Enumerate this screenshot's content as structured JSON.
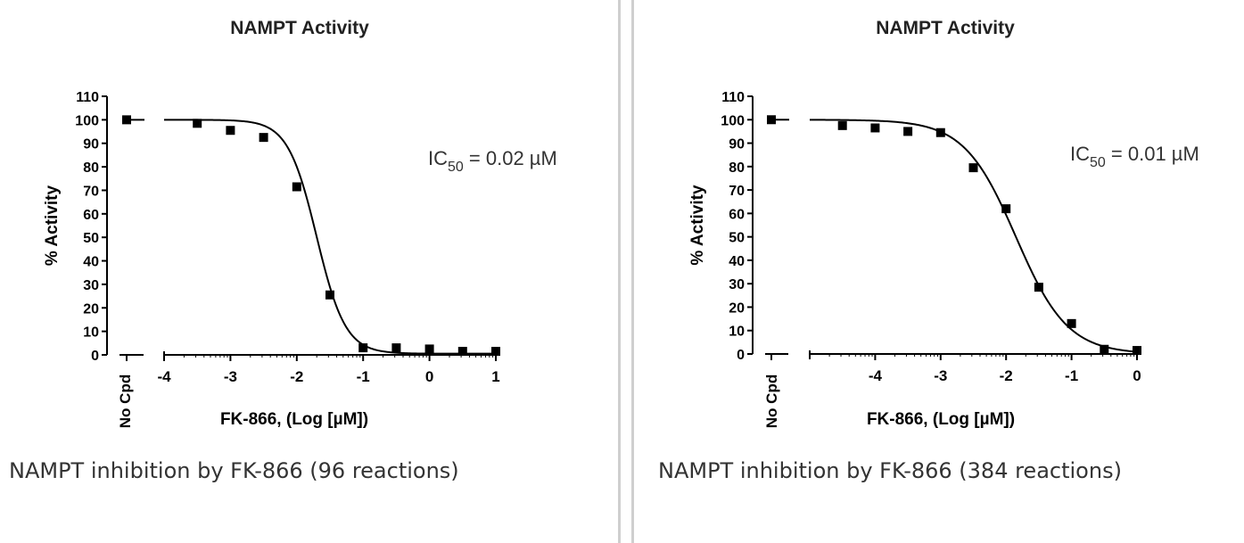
{
  "chart_data": [
    {
      "type": "scatter",
      "title": "NAMPT Activity",
      "xlabel": "FK-866, (Log [µM])",
      "ylabel": "% Activity",
      "ylim": [
        0,
        110
      ],
      "xlim": [
        -4,
        1
      ],
      "yticks": [
        "0",
        "10",
        "20",
        "30",
        "40",
        "50",
        "60",
        "70",
        "80",
        "90",
        "100",
        "110"
      ],
      "xticks": [
        "-4",
        "-3",
        "-2",
        "-1",
        "0",
        "1"
      ],
      "control_label": "No Cpd",
      "control_value": 100,
      "series": [
        {
          "points": [
            {
              "x": -3.5,
              "y": 98.5
            },
            {
              "x": -3.0,
              "y": 95.5
            },
            {
              "x": -2.5,
              "y": 92.5
            },
            {
              "x": -2.0,
              "y": 71.5
            },
            {
              "x": -1.5,
              "y": 25.5
            },
            {
              "x": -1.0,
              "y": 3.0
            },
            {
              "x": -0.5,
              "y": 3.0
            },
            {
              "x": 0.0,
              "y": 2.5
            },
            {
              "x": 0.5,
              "y": 1.5
            },
            {
              "x": 1.0,
              "y": 1.5
            }
          ],
          "fit": {
            "top": 100,
            "bottom": 0.5,
            "log_ic50": -1.7,
            "hill": 2.0
          }
        }
      ],
      "annotation": {
        "prefix": "IC",
        "sub": "50",
        "suffix": " = 0.02 µM"
      },
      "caption": "NAMPT inhibition by FK-866 (96 reactions)"
    },
    {
      "type": "scatter",
      "title": "NAMPT Activity",
      "xlabel": "FK-866, (Log [µM])",
      "ylabel": "% Activity",
      "ylim": [
        0,
        110
      ],
      "xlim": [
        -5,
        0
      ],
      "yticks": [
        "0",
        "10",
        "20",
        "30",
        "40",
        "50",
        "60",
        "70",
        "80",
        "90",
        "100",
        "110"
      ],
      "xticks": [
        "-4",
        "-3",
        "-2",
        "-1",
        "0"
      ],
      "control_label": "No Cpd",
      "control_value": 100,
      "series": [
        {
          "points": [
            {
              "x": -4.5,
              "y": 97.5
            },
            {
              "x": -4.0,
              "y": 96.5
            },
            {
              "x": -3.5,
              "y": 95.0
            },
            {
              "x": -3.0,
              "y": 94.5
            },
            {
              "x": -2.5,
              "y": 79.5
            },
            {
              "x": -2.0,
              "y": 62.0
            },
            {
              "x": -1.5,
              "y": 28.5
            },
            {
              "x": -1.0,
              "y": 13.0
            },
            {
              "x": -0.5,
              "y": 2.0
            },
            {
              "x": 0.0,
              "y": 1.5
            }
          ],
          "fit": {
            "top": 100,
            "bottom": 0,
            "log_ic50": -1.85,
            "hill": 1.1
          }
        }
      ],
      "annotation": {
        "prefix": "IC",
        "sub": "50",
        "suffix": " = 0.01 µM"
      },
      "caption": "NAMPT inhibition by FK-866 (384 reactions)"
    }
  ]
}
